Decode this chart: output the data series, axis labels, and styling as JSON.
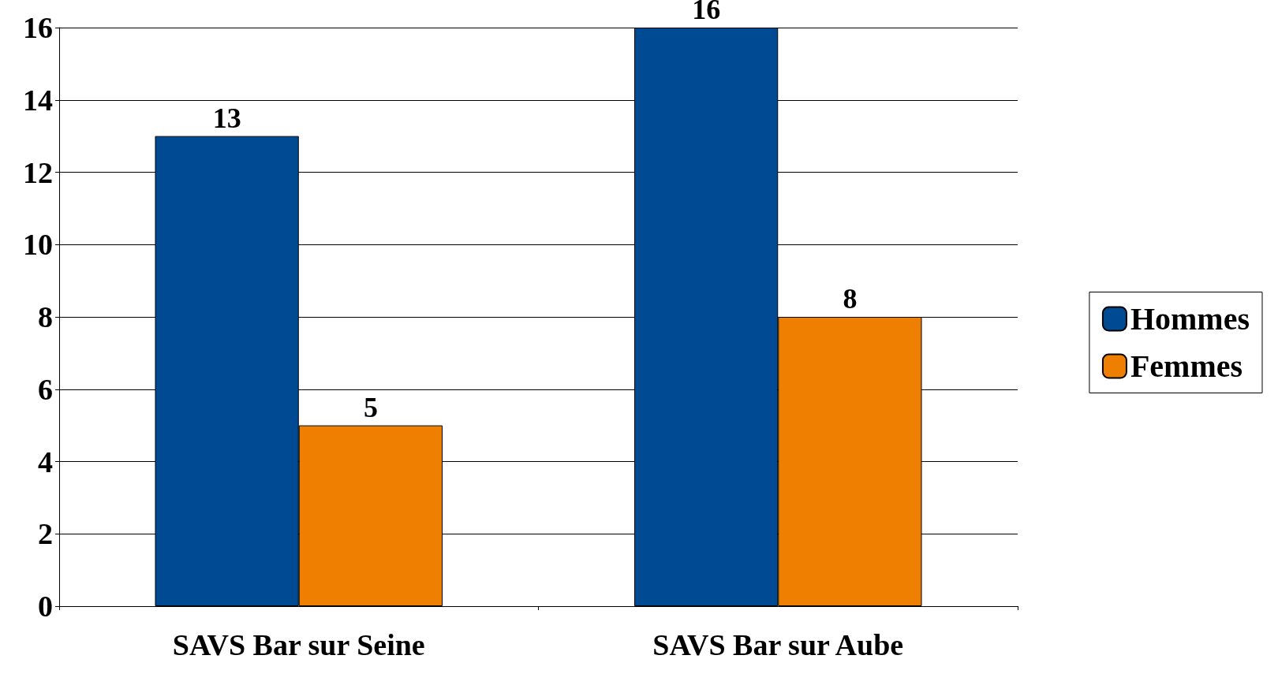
{
  "chart_data": {
    "type": "bar",
    "categories": [
      "SAVS Bar sur Seine",
      "SAVS Bar sur Aube"
    ],
    "series": [
      {
        "name": "Hommes",
        "color": "#004a94",
        "values": [
          13,
          16
        ]
      },
      {
        "name": "Femmes",
        "color": "#ee7f00",
        "values": [
          5,
          8
        ]
      }
    ],
    "ylim": [
      0,
      16
    ],
    "yticks": [
      0,
      2,
      4,
      6,
      8,
      10,
      12,
      14,
      16
    ],
    "grid": "y",
    "legend": "right",
    "data_labels": true
  }
}
